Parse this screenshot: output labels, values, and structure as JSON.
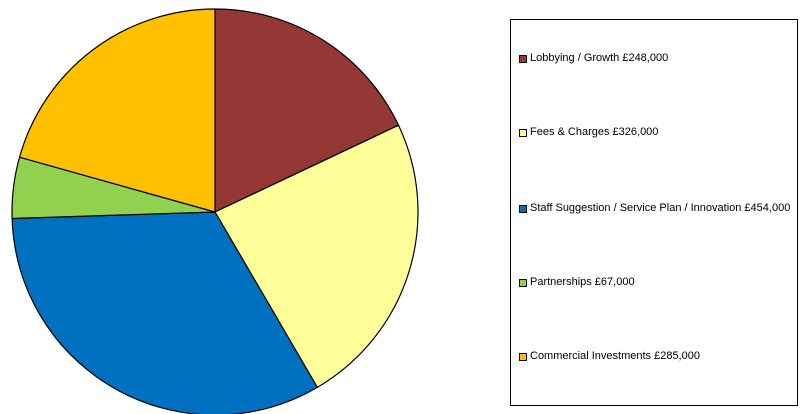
{
  "chart_data": {
    "type": "pie",
    "title": "",
    "slices": [
      {
        "label": "Lobbying / Growth £248,000",
        "value": 248000,
        "color": "#953735"
      },
      {
        "label": "Fees & Charges £326,000",
        "value": 326000,
        "color": "#FFFF99"
      },
      {
        "label": "Staff Suggestion / Service Plan / Innovation £454,000",
        "value": 454000,
        "color": "#0070C0"
      },
      {
        "label": "Partnerships £67,000",
        "value": 67000,
        "color": "#92D050"
      },
      {
        "label": "Commercial Investments £285,000",
        "value": 285000,
        "color": "#FFC000"
      }
    ],
    "start": "12 o'clock",
    "direction": "clockwise",
    "legend_placement": "right"
  }
}
